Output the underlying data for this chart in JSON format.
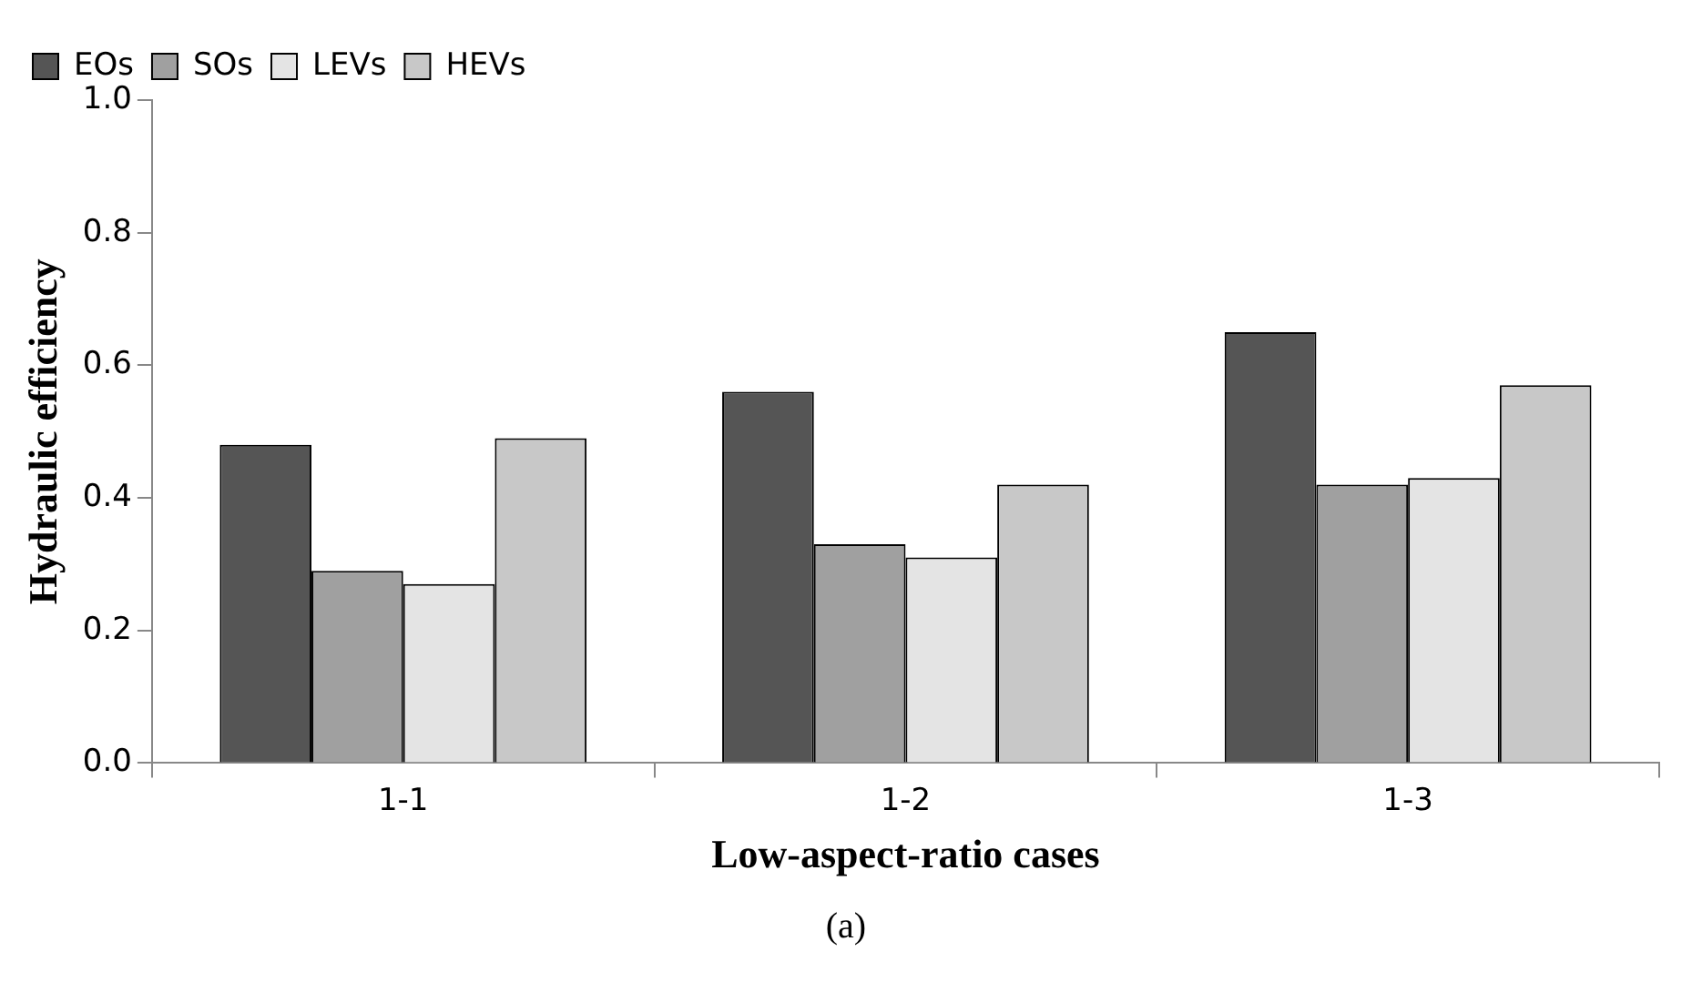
{
  "chart_data": {
    "type": "bar",
    "xlabel": "Low-aspect-ratio cases",
    "ylabel": "Hydraulic efficiency",
    "categories": [
      "1-1",
      "1-2",
      "1-3"
    ],
    "series": [
      {
        "name": "EOs",
        "color": "#555555",
        "values": [
          0.48,
          0.56,
          0.65
        ]
      },
      {
        "name": "SOs",
        "color": "#a0a0a0",
        "values": [
          0.29,
          0.33,
          0.42
        ]
      },
      {
        "name": "LEVs",
        "color": "#e4e4e4",
        "values": [
          0.27,
          0.31,
          0.43
        ]
      },
      {
        "name": "HEVs",
        "color": "#c8c8c8",
        "values": [
          0.49,
          0.42,
          0.57
        ]
      }
    ],
    "ylim": [
      0,
      1
    ],
    "yticks": [
      {
        "value": 0,
        "label": "0.0"
      },
      {
        "value": 0.2,
        "label": "0.2"
      },
      {
        "value": 0.4,
        "label": "0.4"
      },
      {
        "value": 0.6,
        "label": "0.6"
      },
      {
        "value": 0.8,
        "label": "0.8"
      },
      {
        "value": 1,
        "label": "1.0"
      }
    ],
    "grid": false,
    "legend": "top left",
    "annotations": [
      "(a)"
    ]
  }
}
